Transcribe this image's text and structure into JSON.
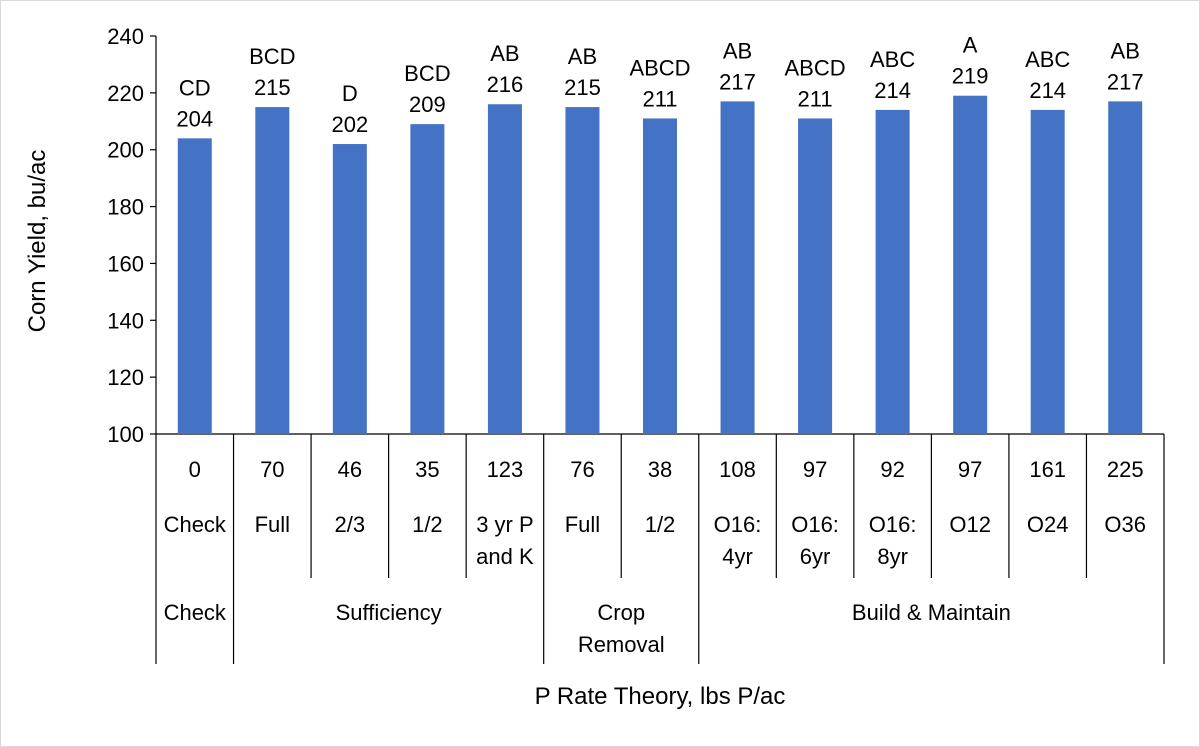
{
  "chart_data": {
    "type": "bar",
    "ylabel": "Corn Yield, bu/ac",
    "xlabel": "P Rate Theory, lbs P/ac",
    "ylim": [
      100,
      240
    ],
    "yticks": [
      100,
      120,
      140,
      160,
      180,
      200,
      220,
      240
    ],
    "bar_color": "#4472C4",
    "categories": [
      {
        "rate": "0",
        "treatment": [
          "Check"
        ],
        "value": 204,
        "letters": "CD"
      },
      {
        "rate": "70",
        "treatment": [
          "Full"
        ],
        "value": 215,
        "letters": "BCD"
      },
      {
        "rate": "46",
        "treatment": [
          "2/3"
        ],
        "value": 202,
        "letters": "D"
      },
      {
        "rate": "35",
        "treatment": [
          "1/2"
        ],
        "value": 209,
        "letters": "BCD"
      },
      {
        "rate": "123",
        "treatment": [
          "3 yr P",
          "and K"
        ],
        "value": 216,
        "letters": "AB"
      },
      {
        "rate": "76",
        "treatment": [
          "Full"
        ],
        "value": 215,
        "letters": "AB"
      },
      {
        "rate": "38",
        "treatment": [
          "1/2"
        ],
        "value": 211,
        "letters": "ABCD"
      },
      {
        "rate": "108",
        "treatment": [
          "O16:",
          "4yr"
        ],
        "value": 217,
        "letters": "AB"
      },
      {
        "rate": "97",
        "treatment": [
          "O16:",
          "6yr"
        ],
        "value": 211,
        "letters": "ABCD"
      },
      {
        "rate": "92",
        "treatment": [
          "O16:",
          "8yr"
        ],
        "value": 214,
        "letters": "ABC"
      },
      {
        "rate": "97",
        "treatment": [
          "O12"
        ],
        "value": 219,
        "letters": "A"
      },
      {
        "rate": "161",
        "treatment": [
          "O24"
        ],
        "value": 214,
        "letters": "ABC"
      },
      {
        "rate": "225",
        "treatment": [
          "O36"
        ],
        "value": 217,
        "letters": "AB"
      }
    ],
    "groups": [
      {
        "label": [
          "Check"
        ],
        "start": 0,
        "end": 0
      },
      {
        "label": [
          "Sufficiency"
        ],
        "start": 1,
        "end": 4
      },
      {
        "label": [
          "Crop",
          "Removal"
        ],
        "start": 5,
        "end": 6
      },
      {
        "label": [
          "Build & Maintain"
        ],
        "start": 7,
        "end": 12
      }
    ]
  }
}
